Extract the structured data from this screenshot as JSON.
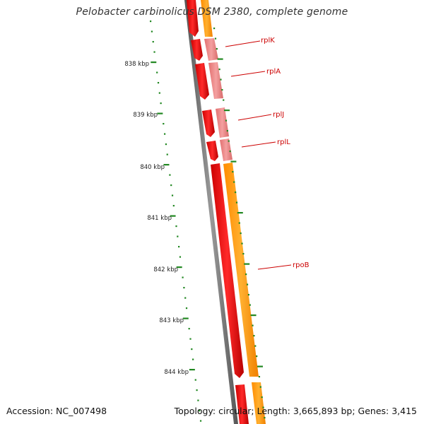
{
  "title": "Pelobacter carbinolicus DSM 2380, complete genome",
  "accession_text": "Accession: NC_007498",
  "summary_text": "Topology: circular; Length: 3,665,893 bp; Genes: 3,415",
  "ruler": {
    "unit": "kbp",
    "labels": [
      "838 kbp",
      "839 kbp",
      "840 kbp",
      "841 kbp",
      "842 kbp",
      "843 kbp",
      "844 kbp"
    ]
  },
  "genes": [
    {
      "name": "rplK",
      "strand": "reverse"
    },
    {
      "name": "rplA",
      "strand": "reverse"
    },
    {
      "name": "rplJ",
      "strand": "reverse"
    },
    {
      "name": "rplL",
      "strand": "reverse"
    },
    {
      "name": "rpoB",
      "strand": "reverse"
    }
  ],
  "colors": {
    "cds": "#ff0000",
    "rrna_trna": "#ee8888",
    "gene": "#ff9900",
    "backbone": "#777777",
    "ticks": "#228822",
    "labels": "#cc0000"
  }
}
